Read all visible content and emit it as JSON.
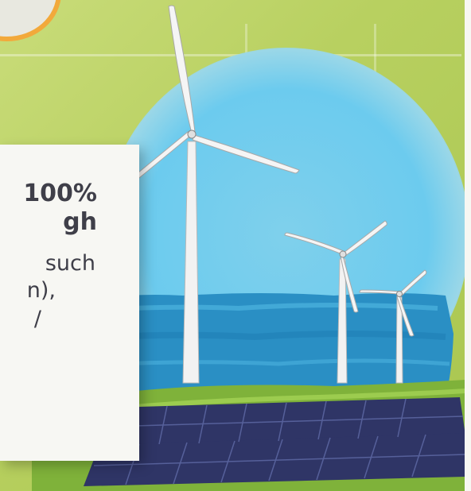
{
  "card": {
    "line1": "100%",
    "line2": "gh",
    "line3": "such",
    "line4": "n),",
    "line5": "/"
  },
  "colors": {
    "background": "#b8d060",
    "sky": "#6ccbee",
    "water": "#2a8fc4",
    "grass": "#7fb23a",
    "solar_panel": "#2f3566",
    "turbine": "#f2f2f2",
    "badge_border": "#f2a93b"
  }
}
